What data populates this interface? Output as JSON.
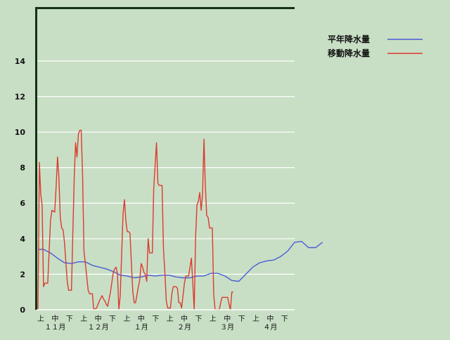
{
  "chart_data": {
    "type": "line",
    "title": "",
    "xlabel": "",
    "ylabel": "",
    "ylim": [
      0,
      17
    ],
    "grid": true,
    "legend_position": "top-right",
    "y_ticks": [
      0,
      2,
      4,
      6,
      8,
      10,
      12,
      14
    ],
    "x_label_rows": {
      "decades": [
        "上",
        "中",
        "下",
        "上",
        "中",
        "下",
        "上",
        "中",
        "下",
        "上",
        "中",
        "下",
        "上",
        "中",
        "下",
        "上",
        "中",
        "下"
      ],
      "months": [
        "１１月",
        "１２月",
        "１月",
        "２月",
        "３月",
        "４月"
      ]
    },
    "x_index_range": [
      0,
      185
    ],
    "series": [
      {
        "name": "平年降水量",
        "color": "#4b5bd6",
        "points": [
          [
            1,
            3.4
          ],
          [
            5,
            3.4
          ],
          [
            10,
            3.2
          ],
          [
            15,
            2.9
          ],
          [
            20,
            2.65
          ],
          [
            25,
            2.6
          ],
          [
            30,
            2.7
          ],
          [
            35,
            2.7
          ],
          [
            40,
            2.5
          ],
          [
            45,
            2.4
          ],
          [
            50,
            2.3
          ],
          [
            55,
            2.15
          ],
          [
            60,
            1.95
          ],
          [
            65,
            1.9
          ],
          [
            70,
            1.8
          ],
          [
            75,
            1.85
          ],
          [
            80,
            1.95
          ],
          [
            85,
            1.9
          ],
          [
            90,
            1.95
          ],
          [
            95,
            1.95
          ],
          [
            100,
            1.85
          ],
          [
            105,
            1.8
          ],
          [
            110,
            1.8
          ],
          [
            115,
            1.9
          ],
          [
            120,
            1.9
          ],
          [
            125,
            2.05
          ],
          [
            130,
            2.05
          ],
          [
            135,
            1.9
          ],
          [
            140,
            1.65
          ],
          [
            145,
            1.6
          ],
          [
            150,
            2.0
          ],
          [
            155,
            2.4
          ],
          [
            160,
            2.65
          ],
          [
            165,
            2.75
          ],
          [
            170,
            2.8
          ],
          [
            175,
            3.0
          ],
          [
            180,
            3.3
          ],
          [
            185,
            3.8
          ],
          [
            190,
            3.85
          ],
          [
            195,
            3.5
          ],
          [
            200,
            3.5
          ],
          [
            205,
            3.8
          ]
        ]
      },
      {
        "name": "移動降水量",
        "color": "#dd3a30",
        "points": [
          [
            0,
            0
          ],
          [
            1,
            0
          ],
          [
            2,
            8.3
          ],
          [
            3,
            6.5
          ],
          [
            4,
            5.9
          ],
          [
            5,
            1.3
          ],
          [
            6,
            1.5
          ],
          [
            8,
            1.5
          ],
          [
            10,
            5.0
          ],
          [
            11,
            5.6
          ],
          [
            13,
            5.5
          ],
          [
            14,
            6.9
          ],
          [
            15,
            8.6
          ],
          [
            16,
            7.5
          ],
          [
            17,
            5.2
          ],
          [
            18,
            4.6
          ],
          [
            19,
            4.5
          ],
          [
            20,
            3.8
          ],
          [
            22,
            1.6
          ],
          [
            23,
            1.1
          ],
          [
            25,
            1.1
          ],
          [
            27,
            7.5
          ],
          [
            28,
            9.4
          ],
          [
            29,
            8.6
          ],
          [
            30,
            9.9
          ],
          [
            31,
            10.1
          ],
          [
            32,
            10.1
          ],
          [
            33,
            7.5
          ],
          [
            34,
            3.3
          ],
          [
            35,
            2.6
          ],
          [
            37,
            1.1
          ],
          [
            38,
            0.9
          ],
          [
            40,
            0.9
          ],
          [
            41,
            0.0
          ],
          [
            43,
            0.1
          ],
          [
            45,
            0.5
          ],
          [
            47,
            0.8
          ],
          [
            48,
            0.6
          ],
          [
            49,
            0.5
          ],
          [
            50,
            0.3
          ],
          [
            51,
            0.2
          ],
          [
            53,
            1.0
          ],
          [
            55,
            2.1
          ],
          [
            56,
            2.3
          ],
          [
            57,
            2.4
          ],
          [
            58,
            2.0
          ],
          [
            59,
            0.0
          ],
          [
            60,
            0.8
          ],
          [
            62,
            5.4
          ],
          [
            63,
            6.2
          ],
          [
            64,
            5.0
          ],
          [
            65,
            4.4
          ],
          [
            66,
            4.4
          ],
          [
            67,
            4.3
          ],
          [
            68,
            2.6
          ],
          [
            69,
            1.0
          ],
          [
            70,
            0.4
          ],
          [
            71,
            0.4
          ],
          [
            73,
            1.3
          ],
          [
            74,
            1.7
          ],
          [
            75,
            2.6
          ],
          [
            76,
            2.4
          ],
          [
            77,
            2.1
          ],
          [
            78,
            2.0
          ],
          [
            79,
            1.6
          ],
          [
            80,
            4.0
          ],
          [
            81,
            3.2
          ],
          [
            83,
            3.2
          ],
          [
            84,
            6.8
          ],
          [
            86,
            9.4
          ],
          [
            87,
            7.1
          ],
          [
            88,
            7.0
          ],
          [
            90,
            7.0
          ],
          [
            91,
            3.4
          ],
          [
            92,
            2.1
          ],
          [
            93,
            0.5
          ],
          [
            94,
            0.1
          ],
          [
            96,
            0.1
          ],
          [
            97,
            0.9
          ],
          [
            98,
            1.3
          ],
          [
            100,
            1.3
          ],
          [
            101,
            1.2
          ],
          [
            102,
            0.4
          ],
          [
            103,
            0.4
          ],
          [
            104,
            0.1
          ],
          [
            106,
            1.5
          ],
          [
            107,
            1.9
          ],
          [
            109,
            1.9
          ],
          [
            111,
            2.9
          ],
          [
            112,
            1.5
          ],
          [
            113,
            0.0
          ],
          [
            114,
            4.1
          ],
          [
            115,
            5.9
          ],
          [
            116,
            6.1
          ],
          [
            117,
            6.6
          ],
          [
            118,
            5.6
          ],
          [
            119,
            6.5
          ],
          [
            120,
            9.6
          ],
          [
            121,
            7.0
          ],
          [
            122,
            5.3
          ],
          [
            123,
            5.2
          ],
          [
            124,
            4.6
          ],
          [
            126,
            4.6
          ],
          [
            127,
            0.9
          ],
          [
            128,
            0.0
          ],
          [
            131,
            0.0
          ],
          [
            132,
            0.4
          ],
          [
            133,
            0.7
          ],
          [
            137,
            0.7
          ],
          [
            138,
            0.3
          ],
          [
            139,
            0.0
          ],
          [
            140,
            1.0
          ],
          [
            141,
            1.0
          ]
        ]
      }
    ]
  }
}
